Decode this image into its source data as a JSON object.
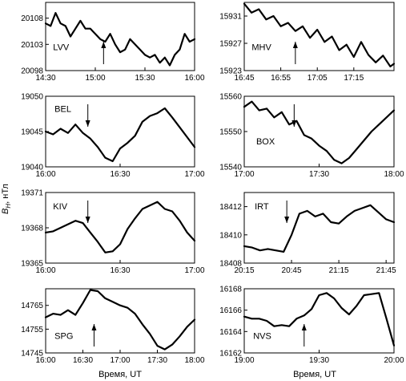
{
  "figure": {
    "ylabel": "B",
    "ylabel_sub": "H",
    "ylabel_unit": ", нТл",
    "xlabel_left": "Время, UT",
    "xlabel_right": "Время, UT"
  },
  "chart_data": [
    {
      "type": "line",
      "station": "LVV",
      "ylabel": "B_H, нТл",
      "xlabel": "",
      "yticks": [
        20108,
        20103,
        20098
      ],
      "ylim": [
        20098,
        20111
      ],
      "xticks": [
        "14:30",
        "15:00",
        "15:30",
        "16:00"
      ],
      "xlim_min": [
        870,
        960
      ],
      "arrow": {
        "x_min": 905,
        "direction": "up"
      },
      "series": [
        {
          "x_min": [
            870,
            873,
            876,
            879,
            882,
            885,
            888,
            891,
            894,
            897,
            900,
            903,
            906,
            909,
            912,
            915,
            918,
            921,
            924,
            927,
            930,
            933,
            936,
            939,
            942,
            945,
            948,
            951,
            954,
            957,
            960
          ],
          "values": [
            20107,
            20106.5,
            20109,
            20107,
            20106.5,
            20104.5,
            20106,
            20107.5,
            20106,
            20106,
            20105,
            20104,
            20103.5,
            20105,
            20103,
            20101.5,
            20102,
            20104,
            20103,
            20102,
            20101,
            20100.5,
            20101,
            20099.5,
            20100.5,
            20099,
            20101,
            20102,
            20105,
            20103.5,
            20104
          ]
        }
      ]
    },
    {
      "type": "line",
      "station": "MHV",
      "ylabel": "B_H, нТл",
      "xlabel": "",
      "yticks": [
        15931,
        15927,
        15923
      ],
      "ylim": [
        15923,
        15933
      ],
      "xticks": [
        "16:45",
        "16:55",
        "17:05",
        "17:15"
      ],
      "xlim_min": [
        1005,
        1046
      ],
      "arrow": {
        "x_min": 1019,
        "direction": "up"
      },
      "series": [
        {
          "x_min": [
            1005,
            1007,
            1009,
            1011,
            1013,
            1015,
            1017,
            1019,
            1021,
            1023,
            1025,
            1027,
            1029,
            1031,
            1033,
            1035,
            1037,
            1039,
            1041,
            1043,
            1045,
            1046
          ],
          "values": [
            15932.8,
            15931.5,
            15932,
            15930.5,
            15931,
            15929.5,
            15930,
            15928.8,
            15929.5,
            15927.8,
            15929,
            15927.2,
            15928,
            15926,
            15926.8,
            15925,
            15927.2,
            15925.3,
            15924.2,
            15925.2,
            15923.6,
            15924
          ]
        }
      ]
    },
    {
      "type": "line",
      "station": "BEL",
      "ylabel": "B_H, нТл",
      "xlabel": "",
      "yticks": [
        19050,
        19045,
        19040
      ],
      "ylim": [
        19040,
        19050
      ],
      "xticks": [
        "16:00",
        "16:30",
        "17:00"
      ],
      "xlim_min": [
        960,
        1020
      ],
      "arrow": {
        "x_min": 977,
        "direction": "down"
      },
      "series": [
        {
          "x_min": [
            960,
            963,
            966,
            969,
            972,
            975,
            978,
            981,
            984,
            987,
            990,
            993,
            996,
            999,
            1002,
            1005,
            1008,
            1011,
            1014,
            1017,
            1020
          ],
          "values": [
            19045,
            19044.6,
            19045.4,
            19044.8,
            19046,
            19044.8,
            19044,
            19042.8,
            19041.3,
            19040.8,
            19042.6,
            19043.4,
            19044.4,
            19046.4,
            19047.2,
            19047.6,
            19048.3,
            19047,
            19045.6,
            19044.2,
            19042.8
          ]
        }
      ]
    },
    {
      "type": "line",
      "station": "BOX",
      "ylabel": "B_H, нТл",
      "xlabel": "",
      "yticks": [
        15560,
        15550,
        15540
      ],
      "ylim": [
        15540,
        15560
      ],
      "xticks": [
        "17:00",
        "17:30",
        "18:00"
      ],
      "xlim_min": [
        1020,
        1080
      ],
      "arrow": {
        "x_min": 1040,
        "direction": "down"
      },
      "series": [
        {
          "x_min": [
            1020,
            1023,
            1026,
            1029,
            1032,
            1035,
            1038,
            1041,
            1044,
            1047,
            1050,
            1053,
            1056,
            1059,
            1062,
            1065,
            1068,
            1071,
            1074,
            1077,
            1080
          ],
          "values": [
            15557,
            15558.5,
            15556,
            15556.5,
            15554,
            15555.5,
            15552,
            15553,
            15549,
            15548,
            15546,
            15544.5,
            15542,
            15541,
            15542.5,
            15545,
            15547.5,
            15550,
            15552,
            15554,
            15556
          ]
        }
      ]
    },
    {
      "type": "line",
      "station": "KIV",
      "ylabel": "B_H, нТл",
      "xlabel": "",
      "yticks": [
        19371,
        19368,
        19365
      ],
      "ylim": [
        19365,
        19371
      ],
      "xticks": [
        "16:00",
        "16:30",
        "17:00"
      ],
      "xlim_min": [
        960,
        1020
      ],
      "arrow": {
        "x_min": 977,
        "direction": "down"
      },
      "series": [
        {
          "x_min": [
            960,
            963,
            966,
            969,
            972,
            975,
            978,
            981,
            984,
            987,
            990,
            993,
            996,
            999,
            1002,
            1005,
            1008,
            1011,
            1014,
            1017,
            1020
          ],
          "values": [
            19367.6,
            19367.7,
            19368,
            19368.3,
            19368.6,
            19368.4,
            19367.6,
            19366.8,
            19365.9,
            19366,
            19366.6,
            19367.9,
            19368.8,
            19369.6,
            19369.9,
            19370.2,
            19369.6,
            19369.4,
            19368.6,
            19367.6,
            19366.9
          ]
        }
      ]
    },
    {
      "type": "line",
      "station": "IRT",
      "ylabel": "B_H, нТл",
      "xlabel": "",
      "yticks": [
        18412,
        18410,
        18408
      ],
      "ylim": [
        18408,
        18413
      ],
      "xticks": [
        "20:15",
        "20:45",
        "21:15",
        "21:45"
      ],
      "xlim_min": [
        1215,
        1310
      ],
      "arrow": {
        "x_min": 1242,
        "direction": "down"
      },
      "series": [
        {
          "x_min": [
            1215,
            1220,
            1225,
            1230,
            1235,
            1240,
            1245,
            1250,
            1255,
            1260,
            1265,
            1270,
            1275,
            1280,
            1285,
            1290,
            1295,
            1300,
            1305,
            1310
          ],
          "values": [
            18409.2,
            18409.1,
            18408.9,
            18409,
            18408.9,
            18408.8,
            18410,
            18411.5,
            18411.7,
            18411.3,
            18411.5,
            18410.9,
            18410.8,
            18411.3,
            18411.7,
            18411.9,
            18412.1,
            18411.6,
            18411.1,
            18410.9
          ]
        }
      ]
    },
    {
      "type": "line",
      "station": "SPG",
      "ylabel": "B_H, нТл",
      "xlabel": "Время, UT",
      "yticks": [
        14765,
        14755,
        14745
      ],
      "ylim": [
        14745,
        14772
      ],
      "xticks": [
        "16:00",
        "16:30",
        "17:00",
        "17:30",
        "18:00"
      ],
      "xlim_min": [
        960,
        1080
      ],
      "arrow": {
        "x_min": 999,
        "direction": "up"
      },
      "series": [
        {
          "x_min": [
            960,
            966,
            972,
            978,
            984,
            990,
            996,
            1002,
            1008,
            1014,
            1020,
            1026,
            1032,
            1038,
            1044,
            1050,
            1056,
            1062,
            1068,
            1074,
            1080
          ],
          "values": [
            14760,
            14761.5,
            14761,
            14763,
            14761,
            14766,
            14771.5,
            14771,
            14768,
            14766.5,
            14765,
            14764,
            14761.5,
            14757,
            14753,
            14748,
            14746.5,
            14748.5,
            14752,
            14756,
            14759
          ]
        }
      ]
    },
    {
      "type": "line",
      "station": "NVS",
      "ylabel": "B_H, нТл",
      "xlabel": "Время, UT",
      "yticks": [
        16168,
        16166,
        16164,
        16162
      ],
      "ylim": [
        16162,
        16168
      ],
      "xticks": [
        "19:00",
        "19:30",
        "20:00"
      ],
      "xlim_min": [
        1140,
        1200
      ],
      "arrow": {
        "x_min": 1164,
        "direction": "up"
      },
      "series": [
        {
          "x_min": [
            1140,
            1143,
            1146,
            1149,
            1152,
            1155,
            1158,
            1161,
            1164,
            1167,
            1170,
            1173,
            1176,
            1179,
            1182,
            1185,
            1188,
            1191,
            1194,
            1197,
            1200
          ],
          "values": [
            16165.4,
            16165.2,
            16165.2,
            16165,
            16164.5,
            16164.6,
            16164.5,
            16165.2,
            16165.5,
            16166.1,
            16167.4,
            16167.6,
            16167.1,
            16166.2,
            16165.6,
            16166.4,
            16167.4,
            16167.5,
            16167.6,
            16165.2,
            16162.7
          ]
        }
      ]
    }
  ]
}
